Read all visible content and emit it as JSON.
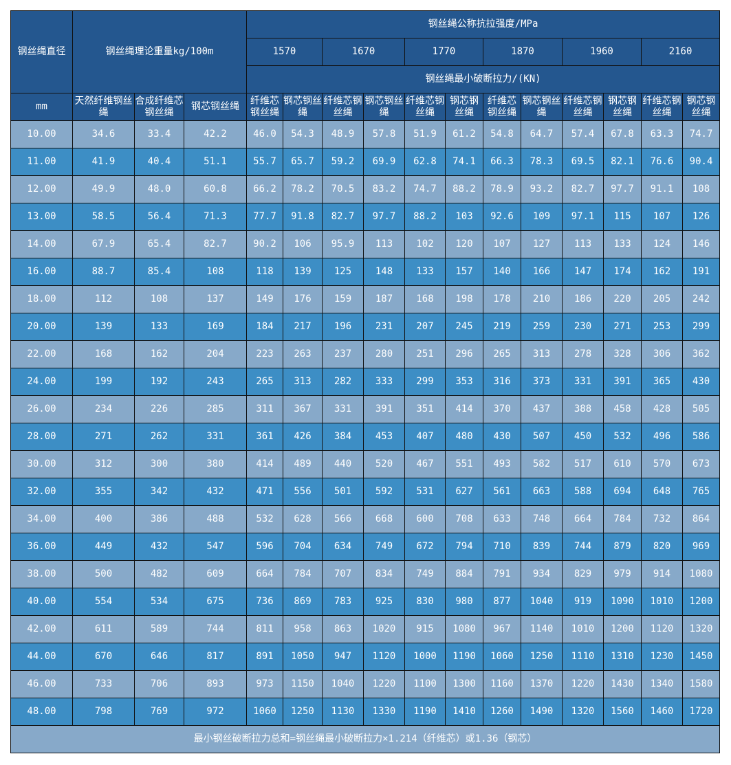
{
  "header": {
    "diameter": "钢丝绳直径",
    "weight": "钢丝绳理论重量kg/100m",
    "strength": "钢丝绳公称抗拉强度/MPa",
    "grades": [
      "1570",
      "1670",
      "1770",
      "1870",
      "1960",
      "2160"
    ],
    "break_force": "钢丝绳最小破断拉力/(KN)",
    "unit": "mm",
    "weight_cols": [
      "天然纤维钢丝绳",
      "合成纤维芯钢丝绳",
      "钢芯钢丝绳"
    ],
    "fiber_core": "纤维芯钢丝绳",
    "steel_core": "钢芯钢丝绳"
  },
  "rows": [
    [
      "10.00",
      "34.6",
      "33.4",
      "42.2",
      "46.0",
      "54.3",
      "48.9",
      "57.8",
      "51.9",
      "61.2",
      "54.8",
      "64.7",
      "57.4",
      "67.8",
      "63.3",
      "74.7"
    ],
    [
      "11.00",
      "41.9",
      "40.4",
      "51.1",
      "55.7",
      "65.7",
      "59.2",
      "69.9",
      "62.8",
      "74.1",
      "66.3",
      "78.3",
      "69.5",
      "82.1",
      "76.6",
      "90.4"
    ],
    [
      "12.00",
      "49.9",
      "48.0",
      "60.8",
      "66.2",
      "78.2",
      "70.5",
      "83.2",
      "74.7",
      "88.2",
      "78.9",
      "93.2",
      "82.7",
      "97.7",
      "91.1",
      "108"
    ],
    [
      "13.00",
      "58.5",
      "56.4",
      "71.3",
      "77.7",
      "91.8",
      "82.7",
      "97.7",
      "88.2",
      "103",
      "92.6",
      "109",
      "97.1",
      "115",
      "107",
      "126"
    ],
    [
      "14.00",
      "67.9",
      "65.4",
      "82.7",
      "90.2",
      "106",
      "95.9",
      "113",
      "102",
      "120",
      "107",
      "127",
      "113",
      "133",
      "124",
      "146"
    ],
    [
      "16.00",
      "88.7",
      "85.4",
      "108",
      "118",
      "139",
      "125",
      "148",
      "133",
      "157",
      "140",
      "166",
      "147",
      "174",
      "162",
      "191"
    ],
    [
      "18.00",
      "112",
      "108",
      "137",
      "149",
      "176",
      "159",
      "187",
      "168",
      "198",
      "178",
      "210",
      "186",
      "220",
      "205",
      "242"
    ],
    [
      "20.00",
      "139",
      "133",
      "169",
      "184",
      "217",
      "196",
      "231",
      "207",
      "245",
      "219",
      "259",
      "230",
      "271",
      "253",
      "299"
    ],
    [
      "22.00",
      "168",
      "162",
      "204",
      "223",
      "263",
      "237",
      "280",
      "251",
      "296",
      "265",
      "313",
      "278",
      "328",
      "306",
      "362"
    ],
    [
      "24.00",
      "199",
      "192",
      "243",
      "265",
      "313",
      "282",
      "333",
      "299",
      "353",
      "316",
      "373",
      "331",
      "391",
      "365",
      "430"
    ],
    [
      "26.00",
      "234",
      "226",
      "285",
      "311",
      "367",
      "331",
      "391",
      "351",
      "414",
      "370",
      "437",
      "388",
      "458",
      "428",
      "505"
    ],
    [
      "28.00",
      "271",
      "262",
      "331",
      "361",
      "426",
      "384",
      "453",
      "407",
      "480",
      "430",
      "507",
      "450",
      "532",
      "496",
      "586"
    ],
    [
      "30.00",
      "312",
      "300",
      "380",
      "414",
      "489",
      "440",
      "520",
      "467",
      "551",
      "493",
      "582",
      "517",
      "610",
      "570",
      "673"
    ],
    [
      "32.00",
      "355",
      "342",
      "432",
      "471",
      "556",
      "501",
      "592",
      "531",
      "627",
      "561",
      "663",
      "588",
      "694",
      "648",
      "765"
    ],
    [
      "34.00",
      "400",
      "386",
      "488",
      "532",
      "628",
      "566",
      "668",
      "600",
      "708",
      "633",
      "748",
      "664",
      "784",
      "732",
      "864"
    ],
    [
      "36.00",
      "449",
      "432",
      "547",
      "596",
      "704",
      "634",
      "749",
      "672",
      "794",
      "710",
      "839",
      "744",
      "879",
      "820",
      "969"
    ],
    [
      "38.00",
      "500",
      "482",
      "609",
      "664",
      "784",
      "707",
      "834",
      "749",
      "884",
      "791",
      "934",
      "829",
      "979",
      "914",
      "1080"
    ],
    [
      "40.00",
      "554",
      "534",
      "675",
      "736",
      "869",
      "783",
      "925",
      "830",
      "980",
      "877",
      "1040",
      "919",
      "1090",
      "1010",
      "1200"
    ],
    [
      "42.00",
      "611",
      "589",
      "744",
      "811",
      "958",
      "863",
      "1020",
      "915",
      "1080",
      "967",
      "1140",
      "1010",
      "1200",
      "1120",
      "1320"
    ],
    [
      "44.00",
      "670",
      "646",
      "817",
      "891",
      "1050",
      "947",
      "1120",
      "1000",
      "1190",
      "1060",
      "1250",
      "1110",
      "1310",
      "1230",
      "1450"
    ],
    [
      "46.00",
      "733",
      "706",
      "893",
      "973",
      "1150",
      "1040",
      "1220",
      "1100",
      "1300",
      "1160",
      "1370",
      "1220",
      "1430",
      "1340",
      "1580"
    ],
    [
      "48.00",
      "798",
      "769",
      "972",
      "1060",
      "1250",
      "1130",
      "1330",
      "1190",
      "1410",
      "1260",
      "1490",
      "1320",
      "1560",
      "1460",
      "1720"
    ]
  ],
  "footer": "最小钢丝破断拉力总和=钢丝绳最小破断拉力×1.214（纤维芯）或1.36（钢芯）",
  "colors": {
    "header": "#24578f",
    "row_light": "#87a9c9",
    "row_blue": "#3d8ec5"
  }
}
